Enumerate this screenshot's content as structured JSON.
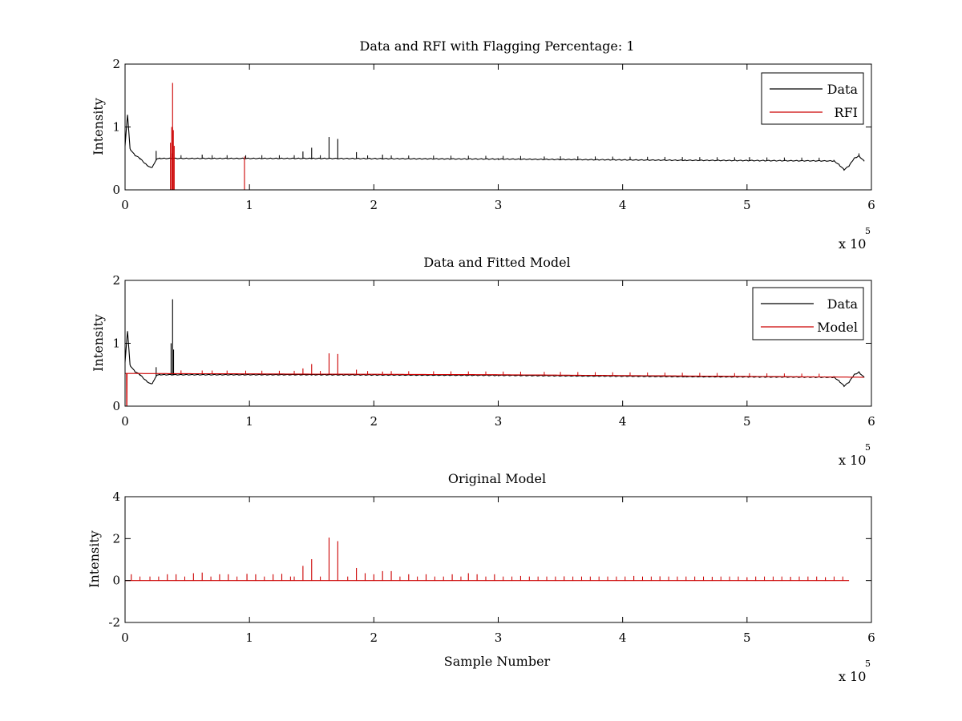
{
  "figure": {
    "background": "#ffffff"
  },
  "chart_data": [
    {
      "type": "line",
      "title": "Data and RFI with Flagging Percentage: 1",
      "xlabel": "",
      "ylabel": "Intensity",
      "xlim": [
        0,
        600000
      ],
      "ylim": [
        0,
        2
      ],
      "x_ticks": [
        0,
        1,
        2,
        3,
        4,
        5,
        6
      ],
      "y_ticks": [
        0,
        1,
        2
      ],
      "x_multiplier": {
        "base": "x 10",
        "exponent": "5"
      },
      "grid": false,
      "legend": {
        "position": "top-right",
        "entries": [
          "Data",
          "RFI"
        ]
      },
      "series": [
        {
          "name": "Data",
          "color": "#000000",
          "baseline": [
            [
              0,
              0.7
            ],
            [
              2000,
              1.2
            ],
            [
              4000,
              0.65
            ],
            [
              8000,
              0.55
            ],
            [
              12000,
              0.5
            ],
            [
              16000,
              0.42
            ],
            [
              20000,
              0.36
            ],
            [
              22000,
              0.36
            ],
            [
              24000,
              0.44
            ],
            [
              26000,
              0.5
            ],
            [
              28000,
              0.5
            ],
            [
              150000,
              0.5
            ],
            [
              300000,
              0.49
            ],
            [
              450000,
              0.47
            ],
            [
              570000,
              0.46
            ],
            [
              574000,
              0.4
            ],
            [
              578000,
              0.32
            ],
            [
              582000,
              0.38
            ],
            [
              586000,
              0.5
            ],
            [
              590000,
              0.54
            ],
            [
              594000,
              0.46
            ]
          ],
          "spikes": [
            [
              25000,
              0.62
            ],
            [
              38000,
              0.58
            ],
            [
              62000,
              0.56
            ],
            [
              97000,
              0.55
            ],
            [
              143000,
              0.61
            ],
            [
              150000,
              0.67
            ],
            [
              164000,
              0.84
            ],
            [
              171000,
              0.81
            ],
            [
              186000,
              0.6
            ],
            [
              207000,
              0.56
            ],
            [
              337000,
              0.53
            ],
            [
              502000,
              0.52
            ],
            [
              590000,
              0.58
            ]
          ],
          "ticks": [
            45000,
            70000,
            82000,
            110000,
            124000,
            136000,
            157000,
            195000,
            214000,
            228000,
            248000,
            262000,
            276000,
            290000,
            304000,
            318000,
            350000,
            364000,
            378000,
            392000,
            406000,
            420000,
            434000,
            448000,
            462000,
            476000,
            490000,
            516000,
            530000,
            544000,
            558000
          ]
        },
        {
          "name": "RFI",
          "color": "#cc0000",
          "spikes": [
            [
              36500,
              0.75
            ],
            [
              37500,
              1.0
            ],
            [
              38200,
              1.7
            ],
            [
              38800,
              0.95
            ],
            [
              39500,
              0.7
            ],
            [
              96000,
              0.53
            ]
          ]
        }
      ]
    },
    {
      "type": "line",
      "title": "Data and Fitted Model",
      "xlabel": "",
      "ylabel": "Intensity",
      "xlim": [
        0,
        600000
      ],
      "ylim": [
        0,
        2
      ],
      "x_ticks": [
        0,
        1,
        2,
        3,
        4,
        5,
        6
      ],
      "y_ticks": [
        0,
        1,
        2
      ],
      "x_multiplier": {
        "base": "x 10",
        "exponent": "5"
      },
      "grid": false,
      "legend": {
        "position": "top-right",
        "entries": [
          "Data",
          "Model"
        ]
      },
      "series": [
        {
          "name": "Data",
          "color": "#000000",
          "baseline": [
            [
              0,
              0.7
            ],
            [
              2000,
              1.2
            ],
            [
              4000,
              0.65
            ],
            [
              8000,
              0.55
            ],
            [
              12000,
              0.5
            ],
            [
              16000,
              0.42
            ],
            [
              20000,
              0.36
            ],
            [
              22000,
              0.36
            ],
            [
              24000,
              0.44
            ],
            [
              26000,
              0.5
            ],
            [
              28000,
              0.5
            ],
            [
              150000,
              0.5
            ],
            [
              300000,
              0.49
            ],
            [
              450000,
              0.47
            ],
            [
              570000,
              0.46
            ],
            [
              574000,
              0.4
            ],
            [
              578000,
              0.32
            ],
            [
              582000,
              0.38
            ],
            [
              586000,
              0.5
            ],
            [
              590000,
              0.54
            ],
            [
              594000,
              0.46
            ]
          ],
          "spikes": [
            [
              25000,
              0.62
            ],
            [
              37000,
              1.0
            ],
            [
              38200,
              1.7
            ],
            [
              39000,
              0.9
            ]
          ],
          "ticks": []
        },
        {
          "name": "Model",
          "color": "#cc0000",
          "baseline": [
            [
              0,
              0.52
            ],
            [
              1200,
              0.52
            ],
            [
              1300,
              0.0
            ],
            [
              1500,
              0.0
            ],
            [
              1600,
              0.52
            ],
            [
              150000,
              0.51
            ],
            [
              300000,
              0.5
            ],
            [
              450000,
              0.48
            ],
            [
              594000,
              0.46
            ]
          ],
          "spikes": [
            [
              143000,
              0.6
            ],
            [
              150000,
              0.67
            ],
            [
              164000,
              0.84
            ],
            [
              171000,
              0.83
            ],
            [
              186000,
              0.58
            ],
            [
              207000,
              0.55
            ]
          ],
          "ticks": [
            45000,
            62000,
            70000,
            82000,
            97000,
            110000,
            124000,
            136000,
            157000,
            195000,
            214000,
            228000,
            248000,
            262000,
            276000,
            290000,
            304000,
            318000,
            337000,
            350000,
            364000,
            378000,
            392000,
            406000,
            420000,
            434000,
            448000,
            462000,
            476000,
            490000,
            502000,
            516000,
            530000,
            544000,
            558000
          ]
        }
      ]
    },
    {
      "type": "line",
      "title": "Original Model",
      "xlabel": "Sample Number",
      "ylabel": "Intensity",
      "xlim": [
        0,
        600000
      ],
      "ylim": [
        -2,
        4
      ],
      "x_ticks": [
        0,
        1,
        2,
        3,
        4,
        5,
        6
      ],
      "y_ticks": [
        -2,
        0,
        2,
        4
      ],
      "x_multiplier": {
        "base": "x 10",
        "exponent": "5"
      },
      "grid": false,
      "legend": null,
      "series": [
        {
          "name": "",
          "color": "#cc0000",
          "baseline_value": 0,
          "x_range": [
            0,
            582000
          ],
          "spikes": [
            [
              5000,
              0.3
            ],
            [
              34000,
              0.3
            ],
            [
              41000,
              0.3
            ],
            [
              55000,
              0.35
            ],
            [
              62000,
              0.38
            ],
            [
              76000,
              0.3
            ],
            [
              83000,
              0.3
            ],
            [
              98000,
              0.32
            ],
            [
              105000,
              0.3
            ],
            [
              119000,
              0.3
            ],
            [
              126000,
              0.32
            ],
            [
              143000,
              0.7
            ],
            [
              150000,
              1.02
            ],
            [
              164000,
              2.05
            ],
            [
              171000,
              1.88
            ],
            [
              186000,
              0.6
            ],
            [
              193000,
              0.35
            ],
            [
              200000,
              0.3
            ],
            [
              207000,
              0.45
            ],
            [
              214000,
              0.45
            ],
            [
              228000,
              0.3
            ],
            [
              242000,
              0.3
            ],
            [
              263000,
              0.3
            ],
            [
              276000,
              0.35
            ],
            [
              283000,
              0.3
            ],
            [
              297000,
              0.3
            ],
            [
              318000,
              0.22
            ],
            [
              353000,
              0.2
            ],
            [
              409000,
              0.22
            ],
            [
              430000,
              0.2
            ],
            [
              472000,
              0.18
            ],
            [
              500000,
              0.16
            ],
            [
              535000,
              0.18
            ],
            [
              563000,
              0.16
            ]
          ],
          "ticks": [
            12000,
            20000,
            27000,
            48000,
            69000,
            90000,
            112000,
            133000,
            136000,
            157000,
            179000,
            221000,
            235000,
            249000,
            256000,
            270000,
            290000,
            304000,
            311000,
            325000,
            332000,
            339000,
            346000,
            360000,
            367000,
            374000,
            381000,
            388000,
            395000,
            402000,
            416000,
            423000,
            437000,
            444000,
            451000,
            458000,
            465000,
            479000,
            486000,
            493000,
            507000,
            514000,
            521000,
            528000,
            542000,
            549000,
            556000,
            570000,
            577000
          ]
        }
      ]
    }
  ]
}
